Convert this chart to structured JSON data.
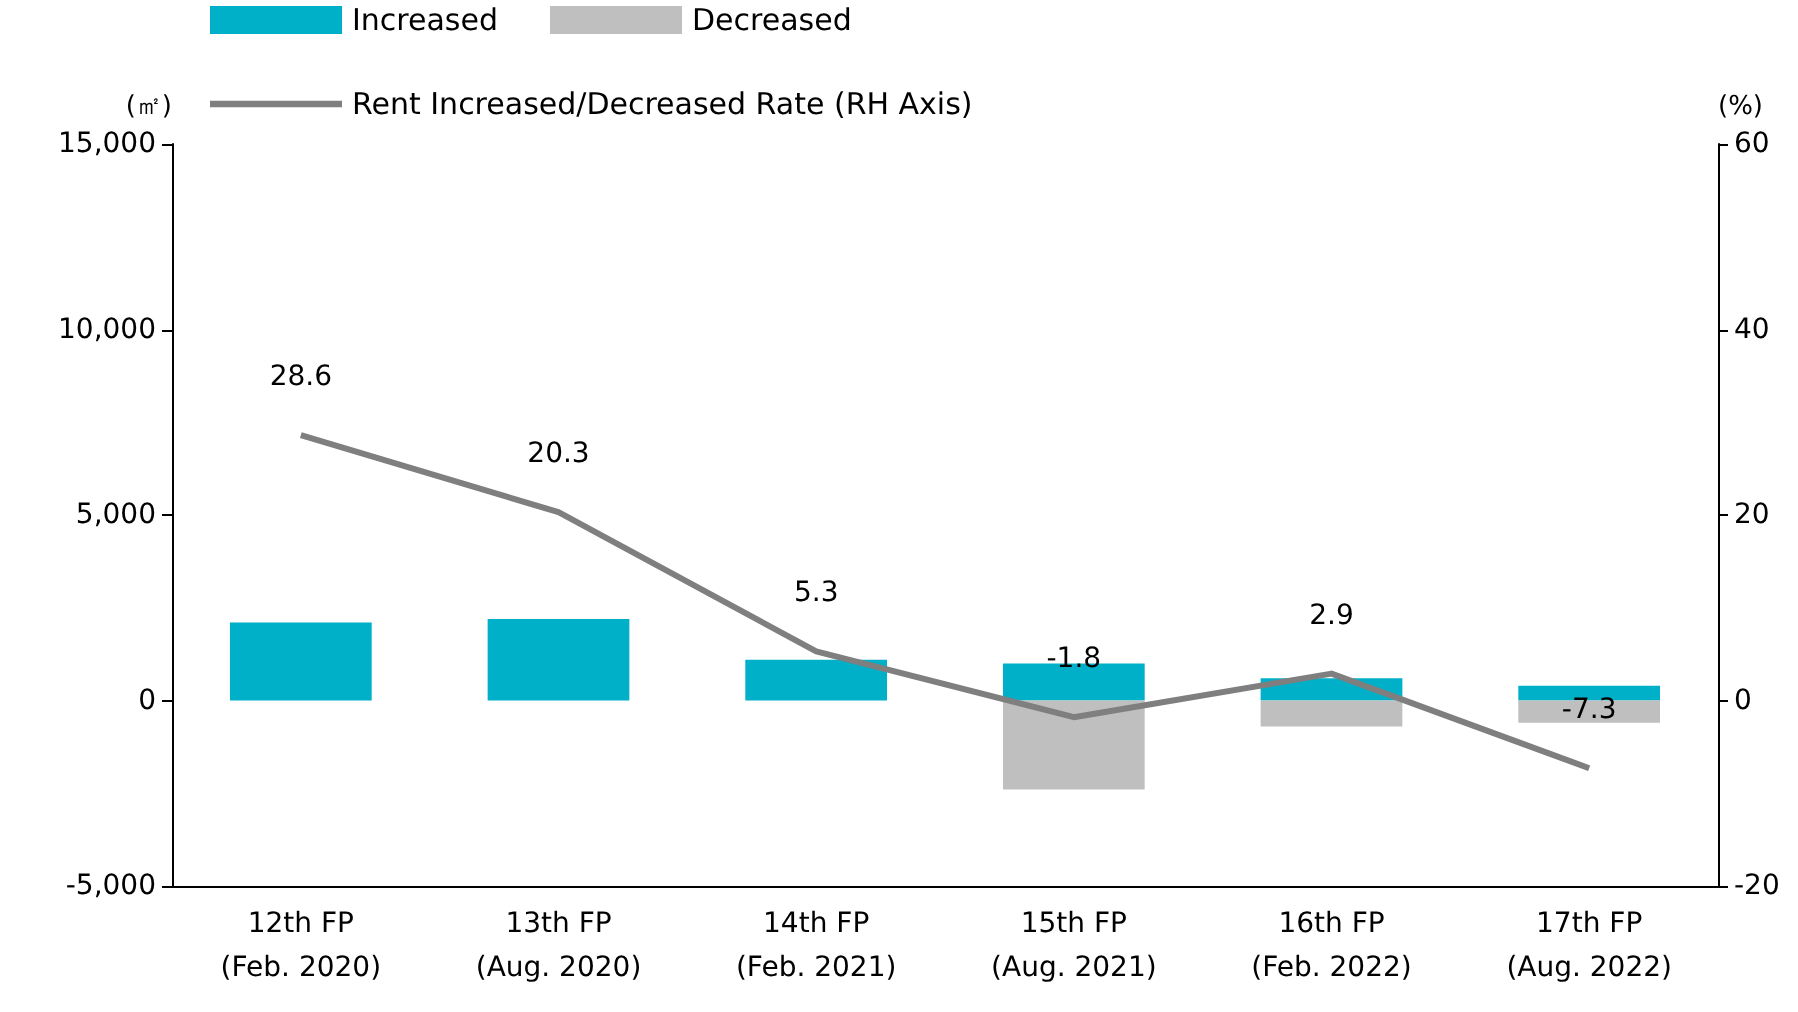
{
  "chart_data": {
    "type": "bar",
    "stacked": true,
    "categories": [
      "12th FP\n(Feb. 2020)",
      "13th FP\n(Aug. 2020)",
      "14th FP\n(Feb. 2021)",
      "15th FP\n(Aug. 2021)",
      "16th FP\n(Feb. 2022)",
      "17th FP\n(Aug. 2022)"
    ],
    "ylabel": "(㎡)",
    "y2label": "(%)",
    "ylim": [
      -5000,
      15000
    ],
    "yticks": [
      {
        "value": -5000,
        "label": "-5,000"
      },
      0,
      {
        "value": 5000,
        "label": "5,000"
      },
      {
        "value": 10000,
        "label": "10,000"
      },
      {
        "value": 15000,
        "label": "15,000"
      }
    ],
    "y2lim": [
      -20,
      60
    ],
    "y2ticks": [
      -20,
      0,
      20,
      40,
      60
    ],
    "series": [
      {
        "name": "Increased",
        "color": "#00b0c8",
        "values": [
          2100,
          2200,
          1100,
          1000,
          600,
          400
        ]
      },
      {
        "name": "Decreased",
        "color": "#bfbfbf",
        "values": [
          0,
          0,
          0,
          -2400,
          -700,
          -600
        ]
      },
      {
        "name": "Rent Increased/Decreased Rate (RH Axis)",
        "type": "line",
        "axis": "y2",
        "color": "#7f7f7f",
        "values": [
          28.6,
          20.3,
          5.3,
          -1.8,
          2.9,
          -7.3
        ],
        "value_labels": [
          "28.6",
          "20.3",
          "5.3",
          "-1.8",
          "2.9",
          "-7.3"
        ]
      }
    ],
    "marker": "none",
    "line_style": "solid",
    "grid": false,
    "legend": "top"
  }
}
